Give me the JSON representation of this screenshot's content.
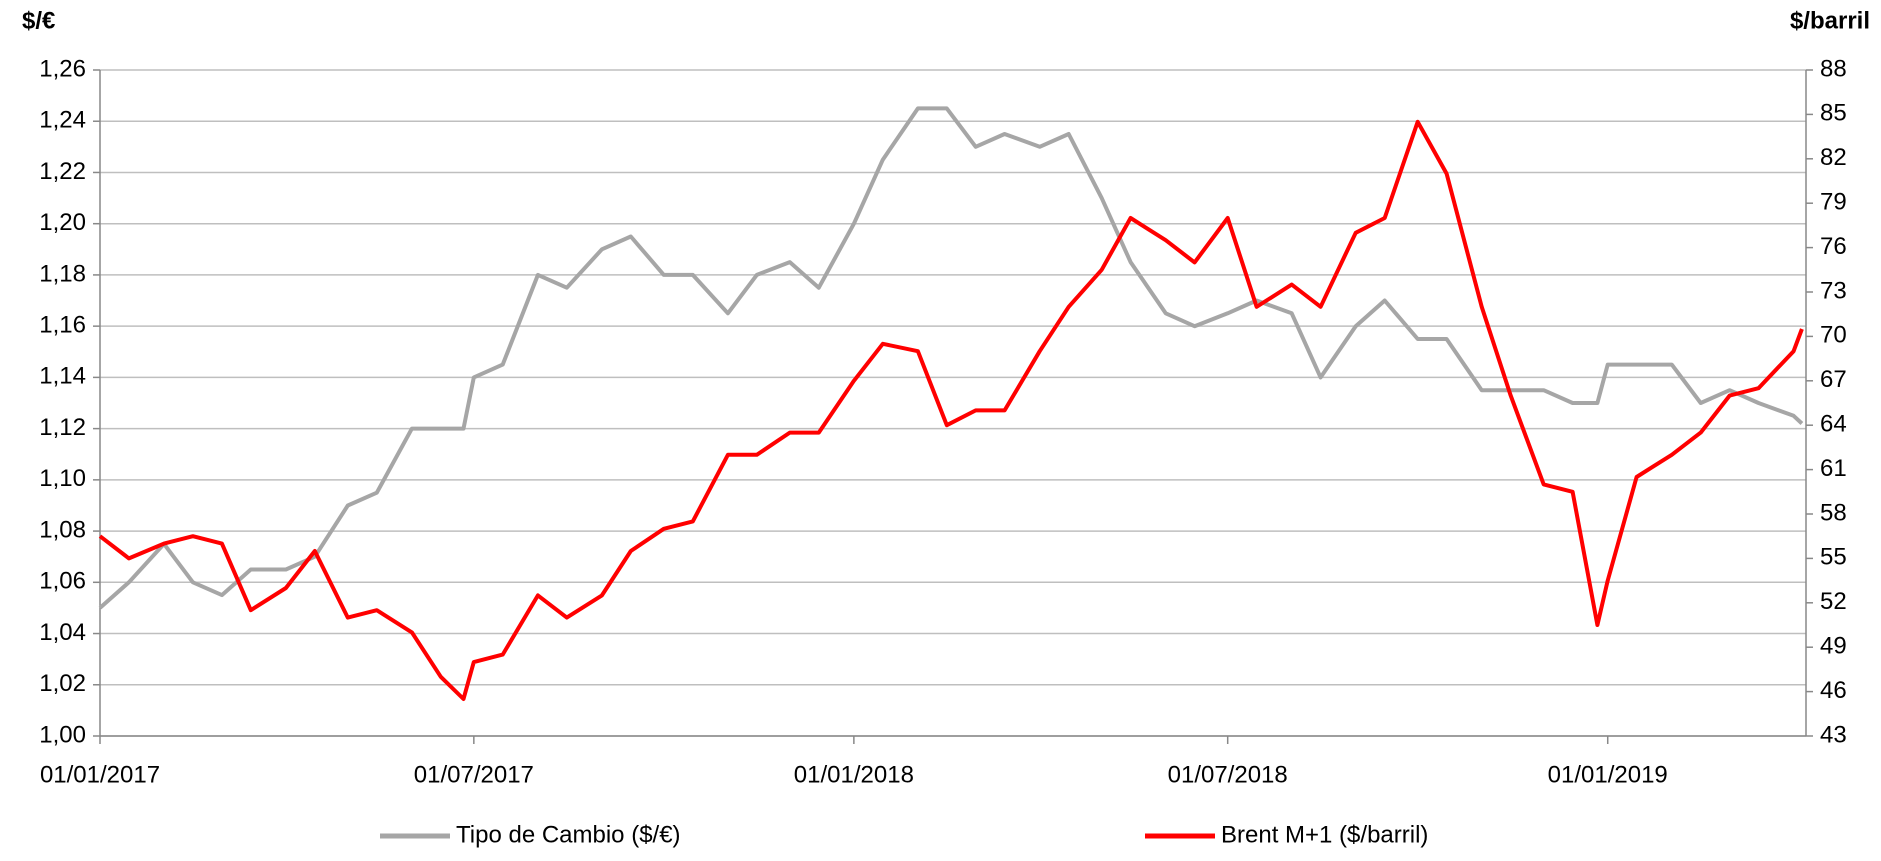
{
  "chart_data": {
    "type": "line",
    "y_title": "$/€",
    "y2_title": "$/barril",
    "x": [
      "2017-01-01",
      "2017-01-15",
      "2017-02-01",
      "2017-02-15",
      "2017-03-01",
      "2017-03-15",
      "2017-04-01",
      "2017-04-15",
      "2017-05-01",
      "2017-05-15",
      "2017-06-01",
      "2017-06-15",
      "2017-06-26",
      "2017-07-01",
      "2017-07-15",
      "2017-08-01",
      "2017-08-15",
      "2017-09-01",
      "2017-09-15",
      "2017-10-01",
      "2017-10-15",
      "2017-11-01",
      "2017-11-15",
      "2017-12-01",
      "2017-12-15",
      "2018-01-01",
      "2018-01-15",
      "2018-02-01",
      "2018-02-15",
      "2018-03-01",
      "2018-03-15",
      "2018-04-01",
      "2018-04-15",
      "2018-05-01",
      "2018-05-15",
      "2018-06-01",
      "2018-06-15",
      "2018-07-01",
      "2018-07-15",
      "2018-08-01",
      "2018-08-15",
      "2018-09-01",
      "2018-09-15",
      "2018-10-01",
      "2018-10-15",
      "2018-11-01",
      "2018-11-15",
      "2018-12-01",
      "2018-12-15",
      "2018-12-27",
      "2019-01-01",
      "2019-01-15",
      "2019-02-01",
      "2019-02-15",
      "2019-03-01",
      "2019-03-15",
      "2019-04-01",
      "2019-04-05"
    ],
    "series": [
      {
        "name": "Tipo de Cambio  ($/€)",
        "color": "#a6a6a6",
        "values": [
          1.05,
          1.06,
          1.075,
          1.06,
          1.055,
          1.065,
          1.065,
          1.07,
          1.09,
          1.095,
          1.12,
          1.12,
          1.12,
          1.14,
          1.145,
          1.18,
          1.175,
          1.19,
          1.195,
          1.18,
          1.18,
          1.165,
          1.18,
          1.185,
          1.175,
          1.2,
          1.225,
          1.245,
          1.245,
          1.23,
          1.235,
          1.23,
          1.235,
          1.21,
          1.185,
          1.165,
          1.16,
          1.165,
          1.17,
          1.165,
          1.14,
          1.16,
          1.17,
          1.155,
          1.155,
          1.135,
          1.135,
          1.135,
          1.13,
          1.13,
          1.145,
          1.145,
          1.145,
          1.13,
          1.135,
          1.13,
          1.125,
          1.122
        ]
      },
      {
        "name": "Brent M+1 ($/barril)",
        "color": "#ff0000",
        "axis": "y2",
        "values": [
          56.5,
          55,
          56,
          56.5,
          56,
          51.5,
          53,
          55.5,
          51,
          51.5,
          50,
          47,
          45.5,
          48,
          48.5,
          52.5,
          51,
          52.5,
          55.5,
          57,
          57.5,
          62,
          62,
          63.5,
          63.5,
          67,
          69.5,
          69,
          64,
          65,
          65,
          69,
          72,
          74.5,
          78,
          76.5,
          75,
          78,
          72,
          73.5,
          72,
          77,
          78,
          84.5,
          81,
          72,
          66,
          60,
          59.5,
          50.5,
          53.5,
          60.5,
          62,
          63.5,
          66,
          66.5,
          69,
          70.5
        ]
      }
    ],
    "xlim": [
      "2017-01-01",
      "2019-04-07"
    ],
    "xticks": [
      {
        "value": "2017-01-01",
        "label": "01/01/2017"
      },
      {
        "value": "2017-07-01",
        "label": "01/07/2017"
      },
      {
        "value": "2018-01-01",
        "label": "01/01/2018"
      },
      {
        "value": "2018-07-01",
        "label": "01/07/2018"
      },
      {
        "value": "2019-01-01",
        "label": "01/01/2019"
      }
    ],
    "ylim": [
      1.0,
      1.26
    ],
    "yticks": [
      {
        "value": 1.0,
        "label": "1,00"
      },
      {
        "value": 1.02,
        "label": "1,02"
      },
      {
        "value": 1.04,
        "label": "1,04"
      },
      {
        "value": 1.06,
        "label": "1,06"
      },
      {
        "value": 1.08,
        "label": "1,08"
      },
      {
        "value": 1.1,
        "label": "1,10"
      },
      {
        "value": 1.12,
        "label": "1,12"
      },
      {
        "value": 1.14,
        "label": "1,14"
      },
      {
        "value": 1.16,
        "label": "1,16"
      },
      {
        "value": 1.18,
        "label": "1,18"
      },
      {
        "value": 1.2,
        "label": "1,20"
      },
      {
        "value": 1.22,
        "label": "1,22"
      },
      {
        "value": 1.24,
        "label": "1,24"
      },
      {
        "value": 1.26,
        "label": "1,26"
      }
    ],
    "y2lim": [
      43,
      88
    ],
    "y2ticks": [
      43,
      46,
      49,
      52,
      55,
      58,
      61,
      64,
      67,
      70,
      73,
      76,
      79,
      82,
      85,
      88
    ],
    "y2_color": "#ff5050",
    "grid": true
  }
}
